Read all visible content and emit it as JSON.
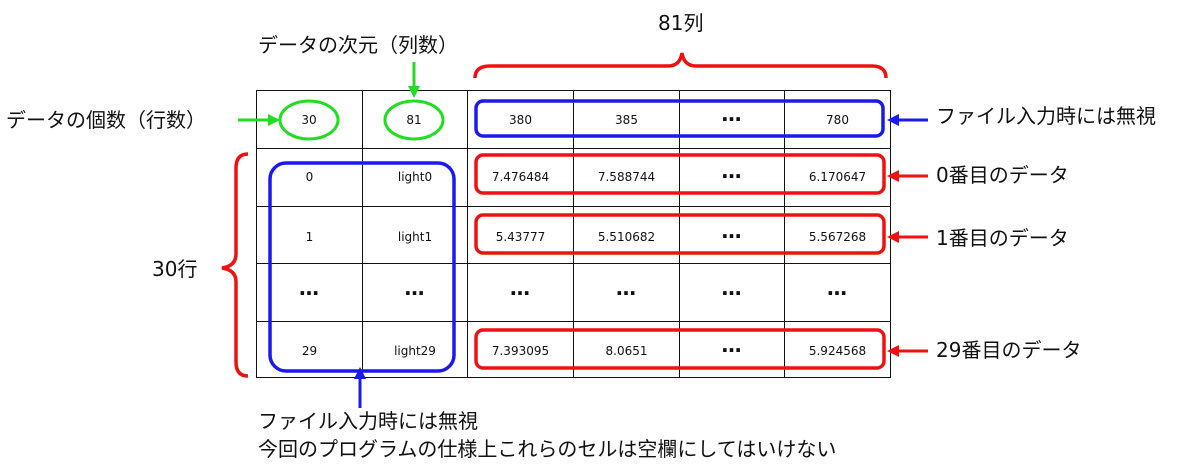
{
  "labels": {
    "dimension": "データの次元（列数）",
    "count": "データの個数（行数）",
    "cols": "81列",
    "rows": "30行",
    "ignore_right": "ファイル入力時には無視",
    "data0": "0番目のデータ",
    "data1": "1番目のデータ",
    "data29": "29番目のデータ",
    "ignore_bottom1": "ファイル入力時には無視",
    "ignore_bottom2": "今回のプログラムの仕様上これらのセルは空欄にしてはいけない"
  },
  "header_row": [
    "30",
    "81",
    "380",
    "385",
    "…",
    "780"
  ],
  "table_rows": [
    [
      "0",
      "light0",
      "7.476484",
      "7.588744",
      "…",
      "6.170647"
    ],
    [
      "1",
      "light1",
      "5.43777",
      "5.510682",
      "…",
      "5.567268"
    ],
    [
      "…",
      "…",
      "…",
      "…",
      "…",
      "…"
    ],
    [
      "29",
      "light29",
      "7.393095",
      "8.0651",
      "…",
      "5.924568"
    ]
  ],
  "colors": {
    "green": "#22dd22",
    "red": "#ee1111",
    "blue": "#1a1aee",
    "grid": "#111111"
  }
}
